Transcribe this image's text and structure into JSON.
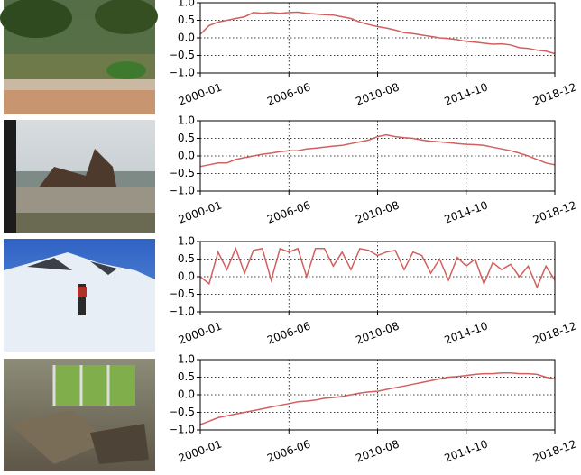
{
  "chart_data": [
    {
      "type": "line",
      "categories": [
        "2000-01",
        null,
        null,
        null,
        null,
        null,
        null,
        null,
        null,
        null,
        "2006-06",
        null,
        null,
        null,
        null,
        null,
        null,
        null,
        null,
        null,
        "2010-08",
        null,
        null,
        null,
        null,
        null,
        null,
        null,
        null,
        null,
        "2014-10",
        null,
        null,
        null,
        null,
        null,
        null,
        null,
        null,
        null,
        "2018-12"
      ],
      "series": [
        {
          "color": "#d1605e",
          "values": [
            0.1,
            0.35,
            0.45,
            0.5,
            0.55,
            0.6,
            0.72,
            0.7,
            0.72,
            0.7,
            0.72,
            0.73,
            0.7,
            0.68,
            0.66,
            0.65,
            0.6,
            0.55,
            0.45,
            0.38,
            0.32,
            0.28,
            0.22,
            0.15,
            0.12,
            0.08,
            0.04,
            0.0,
            -0.02,
            -0.05,
            -0.1,
            -0.12,
            -0.15,
            -0.18,
            -0.17,
            -0.2,
            -0.28,
            -0.3,
            -0.35,
            -0.38,
            -0.45
          ]
        }
      ],
      "ylim": [
        -1,
        1
      ],
      "yticks": [
        {
          "value": -1,
          "label": "−1.0"
        },
        {
          "value": -0.5,
          "label": "−0.5"
        },
        {
          "value": 0,
          "label": "0.0"
        },
        {
          "value": 0.5,
          "label": "0.5"
        },
        {
          "value": 1,
          "label": "1.0"
        }
      ],
      "grid": true
    },
    {
      "type": "line",
      "categories": [
        "2000-01",
        null,
        null,
        null,
        null,
        null,
        null,
        null,
        null,
        null,
        "2006-06",
        null,
        null,
        null,
        null,
        null,
        null,
        null,
        null,
        null,
        "2010-08",
        null,
        null,
        null,
        null,
        null,
        null,
        null,
        null,
        null,
        "2014-10",
        null,
        null,
        null,
        null,
        null,
        null,
        null,
        null,
        null,
        "2018-12"
      ],
      "series": [
        {
          "color": "#d1605e",
          "values": [
            -0.3,
            -0.25,
            -0.2,
            -0.2,
            -0.1,
            -0.05,
            0.0,
            0.05,
            0.08,
            0.12,
            0.15,
            0.15,
            0.2,
            0.22,
            0.25,
            0.28,
            0.3,
            0.35,
            0.4,
            0.45,
            0.55,
            0.6,
            0.55,
            0.52,
            0.5,
            0.45,
            0.42,
            0.4,
            0.38,
            0.35,
            0.33,
            0.32,
            0.3,
            0.25,
            0.2,
            0.15,
            0.08,
            0.0,
            -0.1,
            -0.2,
            -0.25
          ]
        }
      ],
      "ylim": [
        -1,
        1
      ],
      "yticks": [
        {
          "value": -1,
          "label": "−1.0"
        },
        {
          "value": -0.5,
          "label": "−0.5"
        },
        {
          "value": 0,
          "label": "0.0"
        },
        {
          "value": 0.5,
          "label": "0.5"
        },
        {
          "value": 1,
          "label": "1.0"
        }
      ],
      "grid": true
    },
    {
      "type": "line",
      "categories": [
        "2000-01",
        null,
        null,
        null,
        null,
        null,
        null,
        null,
        null,
        null,
        "2006-06",
        null,
        null,
        null,
        null,
        null,
        null,
        null,
        null,
        null,
        "2010-08",
        null,
        null,
        null,
        null,
        null,
        null,
        null,
        null,
        null,
        "2014-10",
        null,
        null,
        null,
        null,
        null,
        null,
        null,
        null,
        null,
        "2018-12"
      ],
      "series": [
        {
          "color": "#d1605e",
          "values": [
            0.0,
            -0.2,
            0.7,
            0.2,
            0.8,
            0.1,
            0.75,
            0.8,
            -0.1,
            0.8,
            0.7,
            0.8,
            0.0,
            0.8,
            0.8,
            0.3,
            0.7,
            0.2,
            0.8,
            0.75,
            0.6,
            0.7,
            0.75,
            0.2,
            0.7,
            0.6,
            0.1,
            0.5,
            -0.1,
            0.55,
            0.3,
            0.5,
            -0.2,
            0.4,
            0.2,
            0.35,
            0.0,
            0.3,
            -0.3,
            0.3,
            -0.1
          ]
        }
      ],
      "ylim": [
        -1,
        1
      ],
      "yticks": [
        {
          "value": -1,
          "label": "−1.0"
        },
        {
          "value": -0.5,
          "label": "−0.5"
        },
        {
          "value": 0,
          "label": "0.0"
        },
        {
          "value": 0.5,
          "label": "0.5"
        },
        {
          "value": 1,
          "label": "1.0"
        }
      ],
      "grid": true
    },
    {
      "type": "line",
      "categories": [
        "2000-01",
        null,
        null,
        null,
        null,
        null,
        null,
        null,
        null,
        null,
        "2006-06",
        null,
        null,
        null,
        null,
        null,
        null,
        null,
        null,
        null,
        "2010-08",
        null,
        null,
        null,
        null,
        null,
        null,
        null,
        null,
        null,
        "2014-10",
        null,
        null,
        null,
        null,
        null,
        null,
        null,
        null,
        null,
        "2018-12"
      ],
      "series": [
        {
          "color": "#d1605e",
          "values": [
            -0.85,
            -0.75,
            -0.65,
            -0.6,
            -0.55,
            -0.5,
            -0.45,
            -0.4,
            -0.35,
            -0.3,
            -0.25,
            -0.2,
            -0.18,
            -0.15,
            -0.1,
            -0.08,
            -0.05,
            0.0,
            0.05,
            0.08,
            0.1,
            0.15,
            0.2,
            0.25,
            0.3,
            0.35,
            0.4,
            0.45,
            0.5,
            0.52,
            0.55,
            0.58,
            0.6,
            0.6,
            0.62,
            0.62,
            0.6,
            0.6,
            0.58,
            0.5,
            0.45
          ]
        }
      ],
      "ylim": [
        -1,
        1
      ],
      "yticks": [
        {
          "value": -1,
          "label": "−1.0"
        },
        {
          "value": -0.5,
          "label": "−0.5"
        },
        {
          "value": 0,
          "label": "0.0"
        },
        {
          "value": 0.5,
          "label": "0.5"
        },
        {
          "value": 1,
          "label": "1.0"
        }
      ],
      "grid": true
    }
  ]
}
